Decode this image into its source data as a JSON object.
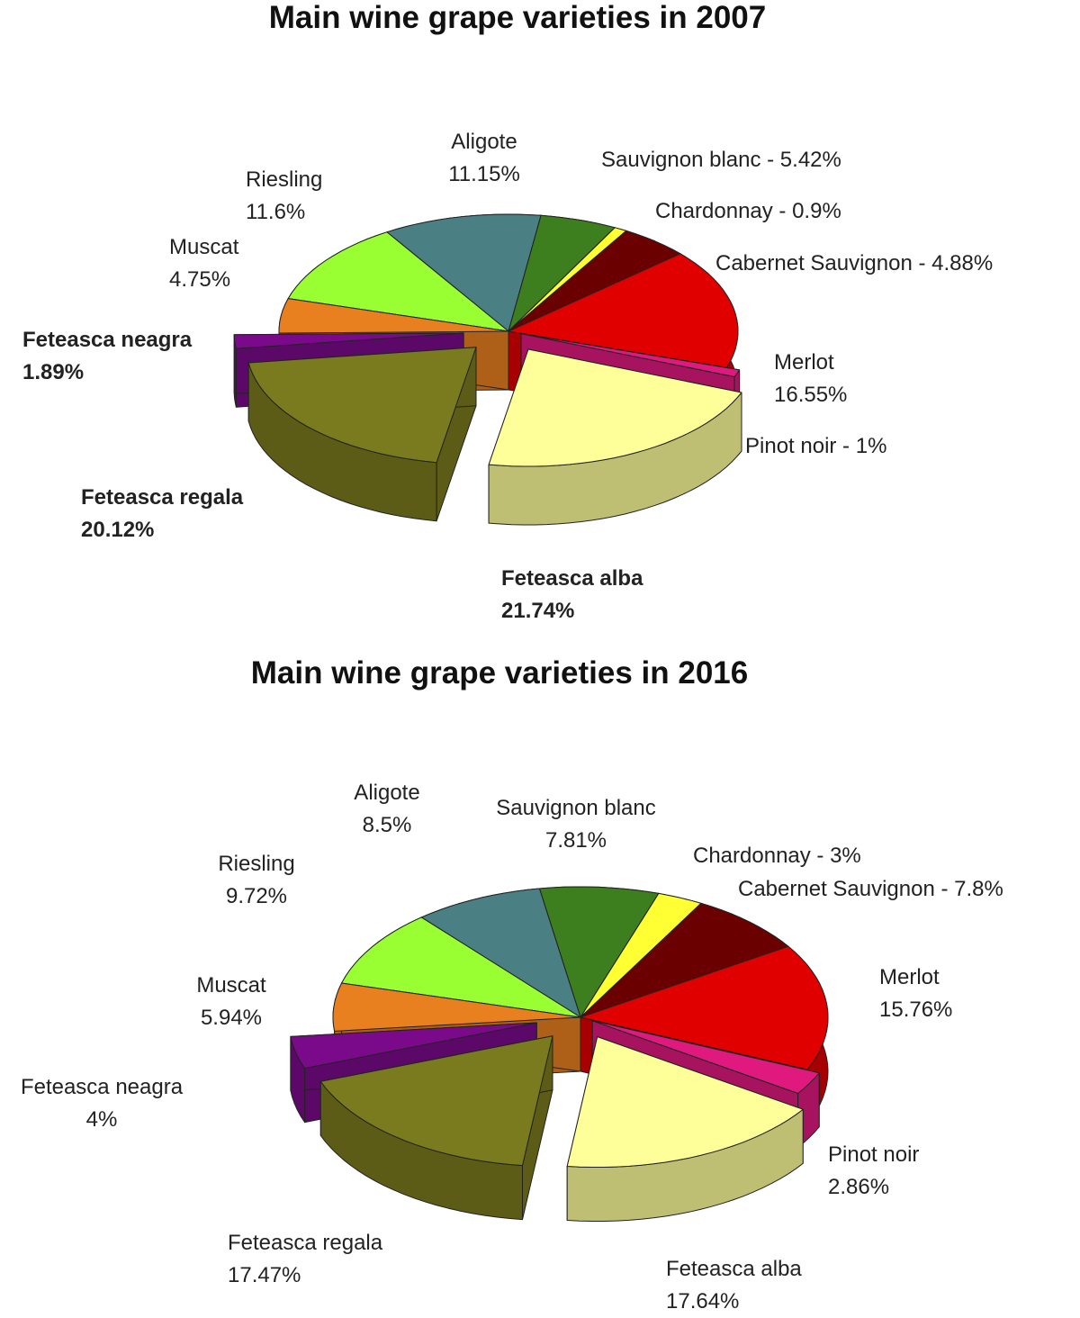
{
  "chart_data": [
    {
      "type": "pie",
      "title": "Main wine grape varieties in 2007",
      "value_labels": [
        "Aligote\n11.15%",
        "Sauvignon blanc - 5.42%",
        "Chardonnay - 0.9%",
        "Cabernet Sauvignon - 4.88%",
        "Merlot\n16.55%",
        "Pinot noir - 1%",
        "Feteasca alba\n21.74%",
        "Feteasca regala\n20.12%",
        "Feteasca neagra\n1.89%",
        "Muscat\n4.75%",
        "Riesling\n11.6%"
      ],
      "values": [
        11.15,
        5.42,
        0.9,
        4.88,
        16.55,
        1,
        21.74,
        20.12,
        1.89,
        4.75,
        11.6
      ],
      "colors": [
        "#4a8084",
        "#3d7e1e",
        "#ffff33",
        "#6b0000",
        "#e00000",
        "#e0197f",
        "#ffff99",
        "#7a7a1e",
        "#7a0a8a",
        "#e98020",
        "#99ff33"
      ],
      "exploded": [
        false,
        false,
        false,
        false,
        false,
        true,
        true,
        true,
        true,
        false,
        false
      ],
      "bold_labels": [
        false,
        false,
        false,
        false,
        false,
        false,
        true,
        true,
        true,
        false,
        false
      ]
    },
    {
      "type": "pie",
      "title": "Main wine grape varieties in 2016",
      "value_labels": [
        "Aligote\n8.5%",
        "Sauvignon blanc\n7.81%",
        "Chardonnay - 3%",
        "Cabernet Sauvignon - 7.8%",
        "Merlot\n15.76%",
        "Pinot noir\n2.86%",
        "Feteasca alba\n17.64%",
        "Feteasca regala\n17.47%",
        "Feteasca neagra\n4%",
        "Muscat\n5.94%",
        "Riesling\n9.72%"
      ],
      "values": [
        8.5,
        7.81,
        3,
        7.8,
        15.76,
        2.86,
        17.64,
        17.47,
        4,
        5.94,
        9.72
      ],
      "colors": [
        "#4a8084",
        "#3d7e1e",
        "#ffff33",
        "#6b0000",
        "#e00000",
        "#e0197f",
        "#ffff99",
        "#7a7a1e",
        "#7a0a8a",
        "#e98020",
        "#99ff33"
      ],
      "exploded": [
        false,
        false,
        false,
        false,
        false,
        true,
        true,
        true,
        true,
        false,
        false
      ],
      "bold_labels": [
        false,
        false,
        false,
        false,
        false,
        false,
        false,
        false,
        false,
        false,
        false
      ]
    }
  ]
}
